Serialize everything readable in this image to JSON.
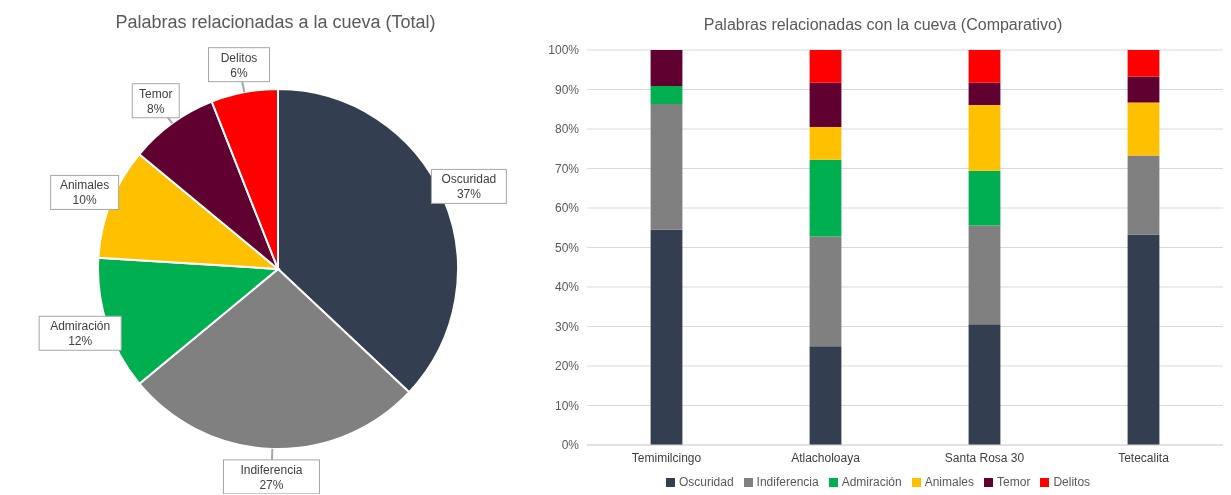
{
  "chart_data": [
    {
      "type": "pie",
      "title": "Palabras relacionadas a la cueva (Total)",
      "categories": [
        "Oscuridad",
        "Indiferencia",
        "Admiración",
        "Animales",
        "Temor",
        "Delitos"
      ],
      "values": [
        37,
        27,
        12,
        10,
        8,
        6
      ],
      "colors": [
        "#333f50",
        "#808080",
        "#00b050",
        "#ffc000",
        "#600030",
        "#ff0000"
      ],
      "value_labels": [
        "37%",
        "27%",
        "12%",
        "10%",
        "8%",
        "6%"
      ],
      "legend": false
    },
    {
      "type": "bar",
      "title": "Palabras relacionadas con la cueva (Comparativo)",
      "stacked": true,
      "categories": [
        "Temimilcingo",
        "Atlacholoaya",
        "Santa Rosa 30",
        "Tetecalita"
      ],
      "series": [
        {
          "name": "Oscuridad",
          "color": "#333f50",
          "values": [
            54.5,
            25,
            30.6,
            53.3
          ]
        },
        {
          "name": "Indiferencia",
          "color": "#808080",
          "values": [
            31.8,
            27.8,
            25,
            20
          ]
        },
        {
          "name": "Admiración",
          "color": "#00b050",
          "values": [
            4.6,
            19.4,
            13.8,
            0
          ]
        },
        {
          "name": "Animales",
          "color": "#ffc000",
          "values": [
            0,
            8.3,
            16.7,
            13.4
          ]
        },
        {
          "name": "Temor",
          "color": "#600030",
          "values": [
            9.1,
            11.2,
            5.6,
            6.6
          ]
        },
        {
          "name": "Delitos",
          "color": "#ff0000",
          "values": [
            0,
            8.3,
            8.3,
            6.7
          ]
        }
      ],
      "ylim": [
        0,
        100
      ],
      "yticks": [
        {
          "value": 0,
          "label": "0%"
        },
        {
          "value": 10,
          "label": "10%"
        },
        {
          "value": 20,
          "label": "20%"
        },
        {
          "value": 30,
          "label": "30%"
        },
        {
          "value": 40,
          "label": "40%"
        },
        {
          "value": 50,
          "label": "50%"
        },
        {
          "value": 60,
          "label": "60%"
        },
        {
          "value": 70,
          "label": "70%"
        },
        {
          "value": 80,
          "label": "80%"
        },
        {
          "value": 90,
          "label": "90%"
        },
        {
          "value": 100,
          "label": "100%"
        }
      ],
      "grid": "y",
      "legend": "bottom"
    }
  ]
}
